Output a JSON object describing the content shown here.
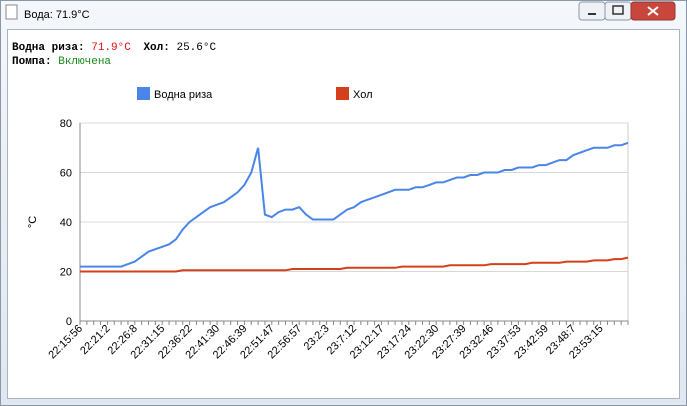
{
  "window": {
    "title": "Вода: 71.9°C"
  },
  "status": {
    "water_label": "Водна риза:",
    "water_value": "71.9°C",
    "room_label": "Хол:",
    "room_value": "25.6°C",
    "pump_label": "Помпа:",
    "pump_value": "Включена"
  },
  "chart_data": {
    "type": "line",
    "y_label": "°C",
    "grid": true,
    "legend": "top",
    "categories": [
      "22:15:56",
      null,
      null,
      null,
      "22:21:2",
      null,
      null,
      null,
      "22:26:8",
      null,
      null,
      null,
      "22:31:15",
      null,
      null,
      null,
      "22:36:22",
      null,
      null,
      null,
      "22:41:30",
      null,
      null,
      null,
      "22:46:39",
      null,
      null,
      null,
      "22:51:47",
      null,
      null,
      null,
      "22:56:57",
      null,
      null,
      null,
      "23:2:3",
      null,
      null,
      null,
      "23:7:12",
      null,
      null,
      null,
      "23:12:17",
      null,
      null,
      null,
      "23:17:24",
      null,
      null,
      null,
      "23:22:30",
      null,
      null,
      null,
      "23:27:39",
      null,
      null,
      null,
      "23:32:46",
      null,
      null,
      null,
      "23:37:53",
      null,
      null,
      null,
      "23:42:59",
      null,
      null,
      null,
      "23:48:7",
      null,
      null,
      null,
      "23:53:15",
      null,
      null,
      null,
      null
    ],
    "series": [
      {
        "name": "Водна риза",
        "color": "#4a86e8",
        "values": [
          22,
          22,
          22,
          22,
          22,
          22,
          22,
          23,
          24,
          26,
          28,
          29,
          30,
          31,
          33,
          37,
          40,
          42,
          44,
          46,
          47,
          48,
          50,
          52,
          55,
          60,
          70,
          43,
          42,
          44,
          45,
          45,
          46,
          43,
          41,
          41,
          41,
          41,
          43,
          45,
          46,
          48,
          49,
          50,
          51,
          52,
          53,
          53,
          53,
          54,
          54,
          55,
          56,
          56,
          57,
          58,
          58,
          59,
          59,
          60,
          60,
          60,
          61,
          61,
          62,
          62,
          62,
          63,
          63,
          64,
          65,
          65,
          67,
          68,
          69,
          70,
          70,
          70,
          71,
          71,
          72
        ]
      },
      {
        "name": "Хол",
        "color": "#d4401b",
        "values": [
          20,
          20,
          20,
          20,
          20,
          20,
          20,
          20,
          20,
          20,
          20,
          20,
          20,
          20,
          20,
          20.5,
          20.5,
          20.5,
          20.5,
          20.5,
          20.5,
          20.5,
          20.5,
          20.5,
          20.5,
          20.5,
          20.5,
          20.5,
          20.5,
          20.5,
          20.5,
          21,
          21,
          21,
          21,
          21,
          21,
          21,
          21,
          21.5,
          21.5,
          21.5,
          21.5,
          21.5,
          21.5,
          21.5,
          21.5,
          22,
          22,
          22,
          22,
          22,
          22,
          22,
          22.5,
          22.5,
          22.5,
          22.5,
          22.5,
          22.5,
          23,
          23,
          23,
          23,
          23,
          23,
          23.5,
          23.5,
          23.5,
          23.5,
          23.5,
          24,
          24,
          24,
          24,
          24.5,
          24.5,
          24.5,
          25,
          25,
          25.6
        ]
      }
    ],
    "ylim": [
      0,
      80
    ],
    "yticks": [
      0,
      20,
      40,
      60,
      80
    ]
  }
}
